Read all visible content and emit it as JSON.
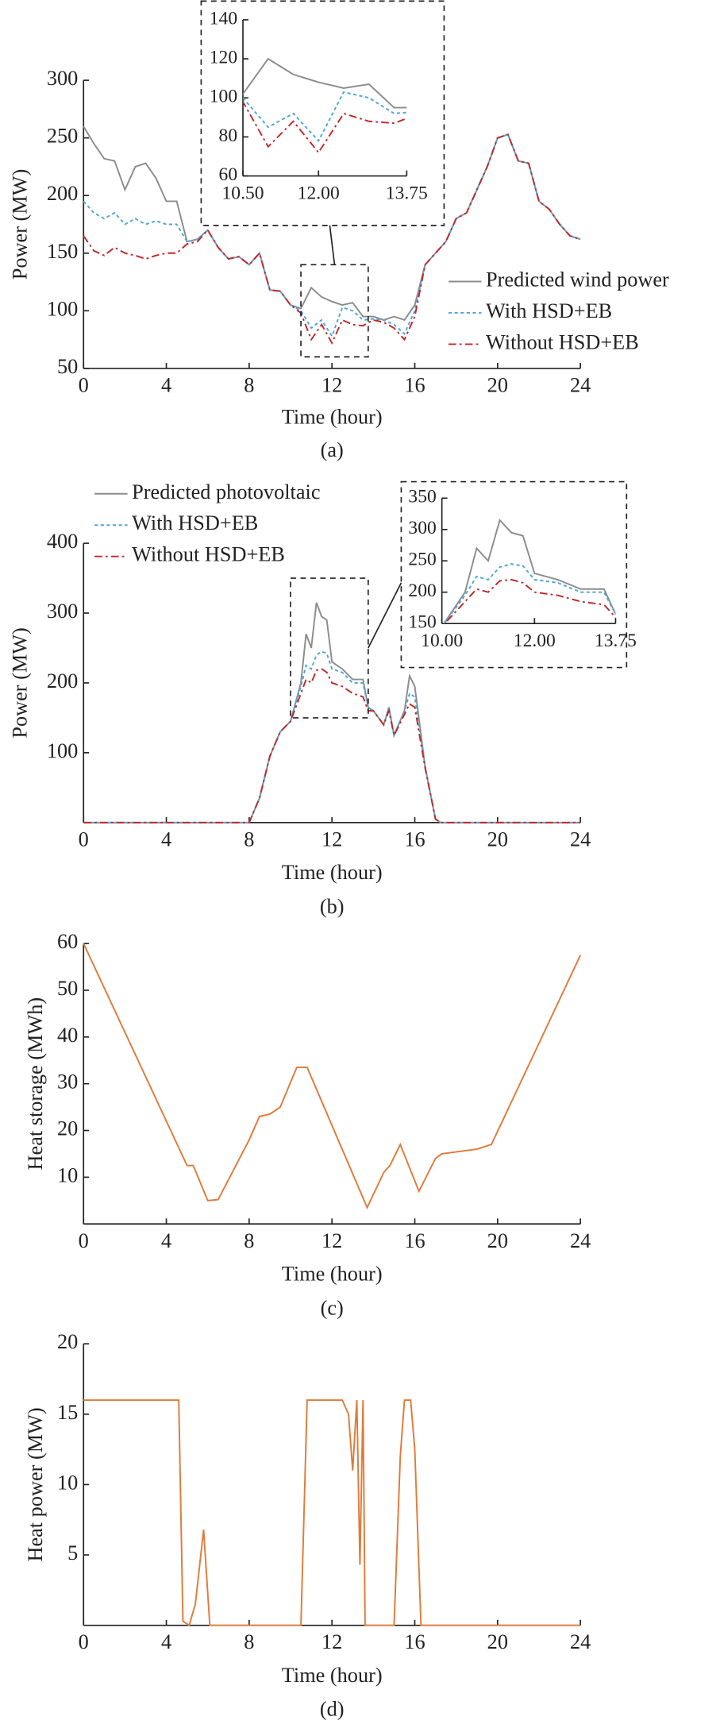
{
  "chart_data": [
    {
      "type": "line",
      "label": "(a)",
      "x_label": "Time (hour)",
      "y_label": "Power (MW)",
      "x": [
        0,
        0.5,
        1,
        1.5,
        2,
        2.5,
        3,
        3.5,
        4,
        4.5,
        5,
        5.5,
        6,
        6.5,
        7,
        7.5,
        8,
        8.5,
        9,
        9.5,
        10,
        10.5,
        11,
        11.5,
        12,
        12.5,
        13,
        13.5,
        14,
        14.5,
        15,
        15.5,
        16,
        16.5,
        17,
        17.5,
        18,
        18.5,
        19,
        19.5,
        20,
        20.5,
        21,
        21.5,
        22,
        22.5,
        23,
        23.5,
        24
      ],
      "series": [
        {
          "name": "Predicted wind power",
          "color": "#8c8c8c",
          "style": "solid",
          "values": [
            260,
            245,
            232,
            230,
            205,
            225,
            228,
            215,
            195,
            195,
            160,
            162,
            170,
            155,
            145,
            147,
            140,
            150,
            118,
            117,
            105,
            102,
            120,
            112,
            108,
            105,
            107,
            95,
            95,
            92,
            95,
            92,
            105,
            140,
            150,
            160,
            180,
            185,
            205,
            225,
            250,
            253,
            230,
            228,
            195,
            188,
            175,
            165,
            162
          ]
        },
        {
          "name": "With HSD+EB",
          "color": "#4da6d6",
          "style": "dotted",
          "values": [
            195,
            185,
            180,
            185,
            175,
            180,
            175,
            178,
            175,
            175,
            160,
            162,
            170,
            155,
            145,
            147,
            140,
            150,
            118,
            117,
            105,
            100,
            85,
            92,
            78,
            103,
            100,
            92,
            93,
            92,
            88,
            80,
            100,
            140,
            150,
            160,
            180,
            185,
            205,
            225,
            250,
            253,
            230,
            228,
            195,
            188,
            175,
            165,
            162
          ]
        },
        {
          "name": "Without HSD+EB",
          "color": "#c0282b",
          "style": "dashdot",
          "values": [
            165,
            152,
            148,
            155,
            150,
            148,
            145,
            148,
            150,
            150,
            158,
            160,
            170,
            155,
            145,
            147,
            140,
            150,
            118,
            117,
            105,
            98,
            75,
            88,
            72,
            92,
            88,
            87,
            92,
            90,
            85,
            75,
            95,
            140,
            150,
            160,
            180,
            185,
            205,
            225,
            250,
            253,
            230,
            228,
            195,
            188,
            175,
            165,
            162
          ]
        }
      ],
      "xlim": [
        0,
        24
      ],
      "xticks": [
        0,
        4,
        8,
        12,
        16,
        20,
        24
      ],
      "ylim": [
        50,
        300
      ],
      "yticks": [
        50,
        100,
        150,
        200,
        250,
        300
      ],
      "legend": "lower right",
      "inset": {
        "xlim": [
          10.5,
          13.75
        ],
        "ylim": [
          60,
          140
        ],
        "xticks": [
          {
            "value": 10.5,
            "label": "10.50"
          },
          {
            "value": 12,
            "label": "12.00"
          },
          {
            "value": 13.75,
            "label": "13.75"
          }
        ],
        "yticks": [
          60,
          80,
          100,
          120,
          140
        ]
      }
    },
    {
      "type": "line",
      "label": "(b)",
      "x_label": "Time (hour)",
      "y_label": "Power (MW)",
      "x": [
        0,
        8,
        8.5,
        9,
        9.5,
        10,
        10.5,
        10.75,
        11,
        11.25,
        11.5,
        11.75,
        12,
        12.5,
        13,
        13.5,
        13.75,
        14,
        14.5,
        14.75,
        15,
        15.5,
        15.75,
        16,
        16.5,
        17,
        17.25,
        24
      ],
      "series": [
        {
          "name": "Predicted photovoltaic",
          "color": "#8c8c8c",
          "style": "solid",
          "values": [
            0,
            0,
            35,
            95,
            130,
            145,
            200,
            270,
            250,
            315,
            295,
            290,
            230,
            220,
            205,
            205,
            165,
            160,
            140,
            165,
            125,
            160,
            210,
            195,
            80,
            5,
            0,
            0
          ]
        },
        {
          "name": "With HSD+EB",
          "color": "#4da6d6",
          "style": "dotted",
          "values": [
            0,
            0,
            35,
            95,
            130,
            145,
            195,
            225,
            220,
            240,
            245,
            242,
            220,
            215,
            200,
            200,
            165,
            160,
            140,
            165,
            125,
            160,
            185,
            180,
            80,
            5,
            0,
            0
          ]
        },
        {
          "name": "Without HSD+EB",
          "color": "#c0282b",
          "style": "dashdot",
          "values": [
            0,
            0,
            35,
            95,
            130,
            145,
            185,
            205,
            200,
            218,
            220,
            215,
            200,
            195,
            185,
            180,
            160,
            160,
            140,
            160,
            125,
            155,
            170,
            165,
            78,
            5,
            0,
            0
          ]
        }
      ],
      "xlim": [
        0,
        24
      ],
      "xticks": [
        0,
        4,
        8,
        12,
        16,
        20,
        24
      ],
      "ylim": [
        0,
        400
      ],
      "yticks": [
        100,
        200,
        300,
        400
      ],
      "legend": "upper left",
      "inset": {
        "xlim": [
          10,
          13.75
        ],
        "ylim": [
          150,
          350
        ],
        "xticks": [
          {
            "value": 10,
            "label": "10.00"
          },
          {
            "value": 12,
            "label": "12.00"
          },
          {
            "value": 13.75,
            "label": "13.75"
          }
        ],
        "yticks": [
          150,
          200,
          250,
          300,
          350
        ]
      }
    },
    {
      "type": "line",
      "label": "(c)",
      "x_label": "Time (hour)",
      "y_label": "Heat storage (MWh)",
      "x": [
        0,
        5,
        5.3,
        6,
        6.5,
        8,
        8.5,
        9,
        9.5,
        10.3,
        10.8,
        13.7,
        14.5,
        14.8,
        15.3,
        16.2,
        17,
        17.3,
        19,
        19.7,
        24
      ],
      "series": [
        {
          "color": "#e07b39",
          "style": "solid",
          "values": [
            60,
            12.5,
            12.5,
            5,
            5.2,
            18,
            23,
            23.5,
            25,
            33.5,
            33.5,
            3.5,
            11,
            12.5,
            17,
            7,
            14,
            15,
            16,
            17,
            57.5
          ]
        }
      ],
      "xlim": [
        0,
        24
      ],
      "xticks": [
        0,
        4,
        8,
        12,
        16,
        20,
        24
      ],
      "ylim": [
        0,
        60
      ],
      "yticks": [
        10,
        20,
        30,
        40,
        50,
        60
      ]
    },
    {
      "type": "line",
      "label": "(d)",
      "x_label": "Time (hour)",
      "y_label": "Heat power (MW)",
      "x": [
        0,
        4.6,
        4.8,
        5.1,
        5.4,
        5.8,
        6.1,
        10.5,
        10.8,
        12.5,
        12.8,
        13,
        13.2,
        13.35,
        13.5,
        13.6,
        15,
        15.3,
        15.5,
        15.8,
        16,
        16.3,
        24
      ],
      "series": [
        {
          "color": "#e07b39",
          "style": "solid",
          "values": [
            16,
            16,
            0.3,
            0,
            1.5,
            6.8,
            0,
            0,
            16,
            16,
            15,
            11,
            16,
            4.3,
            16,
            0,
            0,
            12,
            16,
            16,
            12.5,
            0,
            0
          ]
        }
      ],
      "xlim": [
        0,
        24
      ],
      "xticks": [
        0,
        4,
        8,
        12,
        16,
        20,
        24
      ],
      "ylim": [
        0,
        20
      ],
      "yticks": [
        5,
        10,
        15,
        20
      ]
    }
  ]
}
